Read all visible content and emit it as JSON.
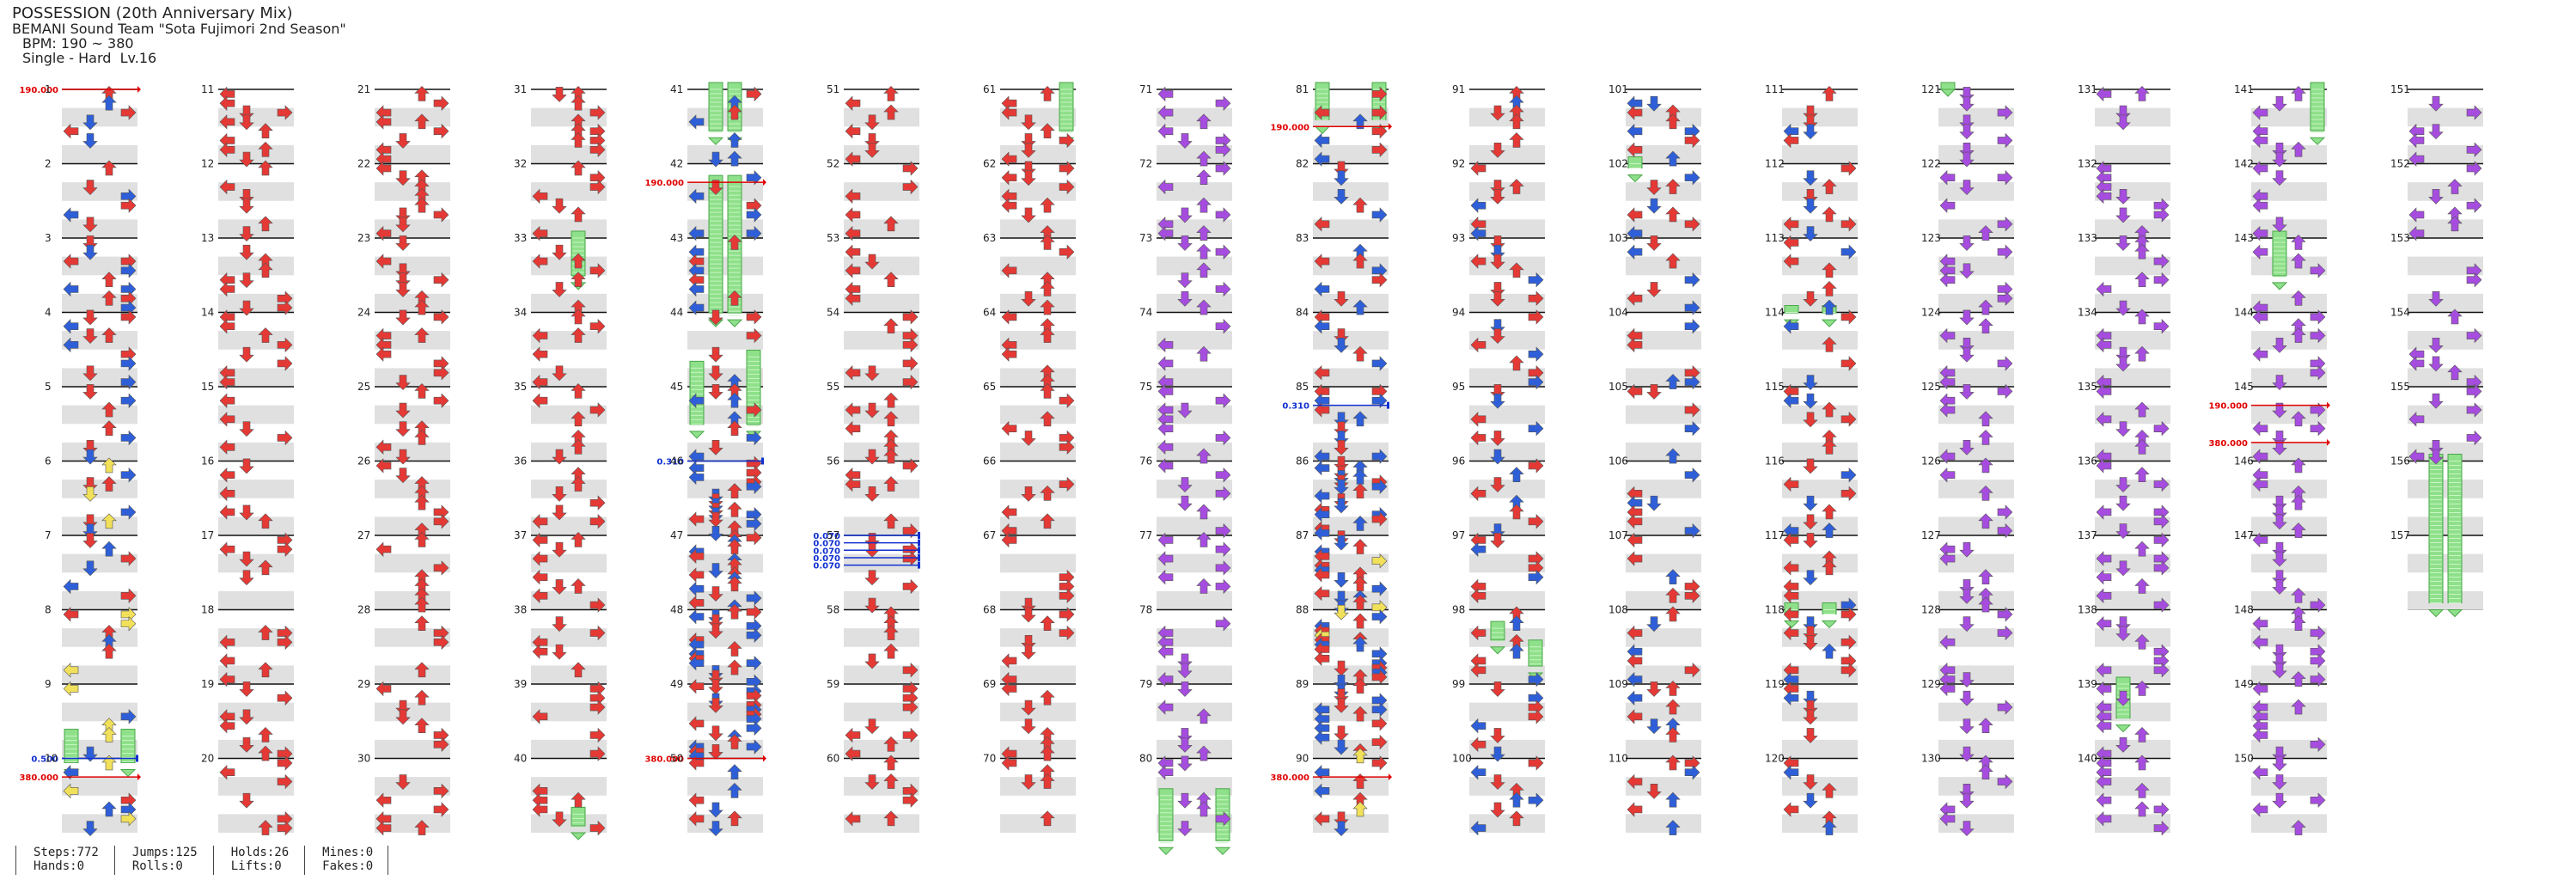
{
  "song": {
    "title": "POSSESSION (20th Anniversary Mix)",
    "artist": "BEMANI Sound Team \"Sota Fujimori 2nd Season\"",
    "bpm": "BPM: 190 ~ 380",
    "mode": "Single - Hard  Lv.16"
  },
  "colors": {
    "red": "#e53935",
    "blue": "#2f5fd8",
    "purple": "#a64de0",
    "yellow": "#f1e05a",
    "green": "#8fe08a",
    "gimmick_red": "#e00000",
    "gimmick_blue": "#1030d0",
    "lane_gray": "#e0e0e0"
  },
  "chart": {
    "columns": 16,
    "measures_per_column": 10,
    "total_measures": 157,
    "measure_numbers": [
      "1",
      "2",
      "3",
      "4",
      "5",
      "6",
      "7",
      "8",
      "9",
      "10",
      "11",
      "12",
      "13",
      "14",
      "15",
      "16",
      "17",
      "18",
      "19",
      "20",
      "21",
      "22",
      "23",
      "24",
      "25",
      "26",
      "27",
      "28",
      "29",
      "30",
      "31",
      "32",
      "33",
      "34",
      "35",
      "36",
      "37",
      "38",
      "39",
      "40",
      "41",
      "42",
      "43",
      "44",
      "45",
      "46",
      "47",
      "48",
      "49",
      "50",
      "51",
      "52",
      "53",
      "54",
      "55",
      "56",
      "57",
      "58",
      "59",
      "60",
      "61",
      "62",
      "63",
      "64",
      "65",
      "66",
      "67",
      "68",
      "69",
      "70",
      "71",
      "72",
      "73",
      "74",
      "75",
      "76",
      "77",
      "78",
      "79",
      "80",
      "81",
      "82",
      "83",
      "84",
      "85",
      "86",
      "87",
      "88",
      "89",
      "90",
      "91",
      "92",
      "93",
      "94",
      "95",
      "96",
      "97",
      "98",
      "99",
      "100",
      "101",
      "102",
      "103",
      "104",
      "105",
      "106",
      "107",
      "108",
      "109",
      "110",
      "111",
      "112",
      "113",
      "114",
      "115",
      "116",
      "117",
      "118",
      "119",
      "120",
      "121",
      "122",
      "123",
      "124",
      "125",
      "126",
      "127",
      "128",
      "129",
      "130",
      "131",
      "132",
      "133",
      "134",
      "135",
      "136",
      "137",
      "138",
      "139",
      "140",
      "141",
      "142",
      "143",
      "144",
      "145",
      "146",
      "147",
      "148",
      "149",
      "150",
      "151",
      "152",
      "153",
      "154",
      "155",
      "156",
      "157"
    ],
    "gimmicks": [
      {
        "col": 0,
        "m": 0,
        "frac": 0.0,
        "label": "190.000",
        "color": "red"
      },
      {
        "col": 0,
        "m": 9,
        "frac": 0.0,
        "label": "0.500",
        "color": "blue"
      },
      {
        "col": 0,
        "m": 9,
        "frac": 0.25,
        "label": "380.000",
        "color": "red"
      },
      {
        "col": 4,
        "m": 1,
        "frac": 0.25,
        "label": "190.000",
        "color": "red"
      },
      {
        "col": 4,
        "m": 5,
        "frac": 0.0,
        "label": "0.310",
        "color": "blue"
      },
      {
        "col": 4,
        "m": 9,
        "frac": 0.0,
        "label": "380.000",
        "color": "red"
      },
      {
        "col": 5,
        "m": 6,
        "frac": 0.0,
        "label": "0.070",
        "color": "blue"
      },
      {
        "col": 5,
        "m": 6,
        "frac": 0.1,
        "label": "0.070",
        "color": "blue"
      },
      {
        "col": 5,
        "m": 6,
        "frac": 0.2,
        "label": "0.070",
        "color": "blue"
      },
      {
        "col": 5,
        "m": 6,
        "frac": 0.3,
        "label": "0.070",
        "color": "blue"
      },
      {
        "col": 5,
        "m": 6,
        "frac": 0.4,
        "label": "0.070",
        "color": "blue"
      },
      {
        "col": 8,
        "m": 0,
        "frac": 0.5,
        "label": "190.000",
        "color": "red"
      },
      {
        "col": 8,
        "m": 4,
        "frac": 0.25,
        "label": "0.310",
        "color": "blue"
      },
      {
        "col": 8,
        "m": 9,
        "frac": 0.25,
        "label": "380.000",
        "color": "red"
      },
      {
        "col": 14,
        "m": 4,
        "frac": 0.25,
        "label": "190.000",
        "color": "red"
      },
      {
        "col": 14,
        "m": 4,
        "frac": 0.75,
        "label": "380.000",
        "color": "red"
      }
    ],
    "holds": [
      {
        "col": 0,
        "m": 8,
        "lane": 0,
        "from": 0.7,
        "to": 1.15
      },
      {
        "col": 0,
        "m": 8,
        "lane": 3,
        "from": 0.7,
        "to": 1.15
      },
      {
        "col": 3,
        "m": 2,
        "lane": 2,
        "from": 0.0,
        "to": 0.6
      },
      {
        "col": 3,
        "m": 9,
        "lane": 2,
        "from": 0.75,
        "to": 1.0
      },
      {
        "col": 4,
        "m": 0,
        "lane": 1,
        "from": 0.0,
        "to": 0.65
      },
      {
        "col": 4,
        "m": 0,
        "lane": 2,
        "from": 0.0,
        "to": 0.65
      },
      {
        "col": 4,
        "m": 1,
        "lane": 1,
        "from": 0.25,
        "to": 2.1
      },
      {
        "col": 4,
        "m": 1,
        "lane": 2,
        "from": 0.25,
        "to": 2.1
      },
      {
        "col": 4,
        "m": 3,
        "lane": 0,
        "from": 0.75,
        "to": 1.6
      },
      {
        "col": 4,
        "m": 3,
        "lane": 3,
        "from": 0.6,
        "to": 1.6
      },
      {
        "col": 6,
        "m": 0,
        "lane": 3,
        "from": 0.0,
        "to": 0.65
      },
      {
        "col": 7,
        "m": 9,
        "lane": 0,
        "from": 0.5,
        "to": 1.2
      },
      {
        "col": 7,
        "m": 9,
        "lane": 3,
        "from": 0.5,
        "to": 1.2
      },
      {
        "col": 8,
        "m": 0,
        "lane": 0,
        "from": 0.0,
        "to": 0.5
      },
      {
        "col": 8,
        "m": 0,
        "lane": 3,
        "from": 0.0,
        "to": 0.5
      },
      {
        "col": 10,
        "m": 1,
        "lane": 0,
        "from": 0.0,
        "to": 0.15
      },
      {
        "col": 11,
        "m": 3,
        "lane": 0,
        "from": 0.0,
        "to": 0.1
      },
      {
        "col": 11,
        "m": 3,
        "lane": 2,
        "from": 0.0,
        "to": 0.1
      },
      {
        "col": 11,
        "m": 7,
        "lane": 0,
        "from": 0.0,
        "to": 0.15
      },
      {
        "col": 11,
        "m": 7,
        "lane": 2,
        "from": 0.0,
        "to": 0.15
      },
      {
        "col": 12,
        "m": 0,
        "lane": 0,
        "from": 0.0,
        "to": 0.0
      },
      {
        "col": 13,
        "m": 8,
        "lane": 1,
        "from": 0.0,
        "to": 0.55
      },
      {
        "col": 14,
        "m": 0,
        "lane": 3,
        "from": 0.0,
        "to": 0.65
      },
      {
        "col": 14,
        "m": 2,
        "lane": 1,
        "from": 0.0,
        "to": 0.6
      },
      {
        "col": 15,
        "m": 5,
        "lane": 1,
        "from": 0.0,
        "to": 2.0
      },
      {
        "col": 15,
        "m": 5,
        "lane": 2,
        "from": 0.0,
        "to": 2.0
      },
      {
        "col": 9,
        "m": 7,
        "lane": 1,
        "from": 0.25,
        "to": 0.5
      },
      {
        "col": 9,
        "m": 7,
        "lane": 3,
        "from": 0.5,
        "to": 0.85
      }
    ]
  },
  "stats": {
    "steps": "Steps:772",
    "hands": "Hands:0",
    "jumps": "Jumps:125",
    "rolls": "Rolls:0",
    "holds": "Holds:26",
    "lifts": "Lifts:0",
    "mines": "Mines:0",
    "fakes": "Fakes:0"
  }
}
